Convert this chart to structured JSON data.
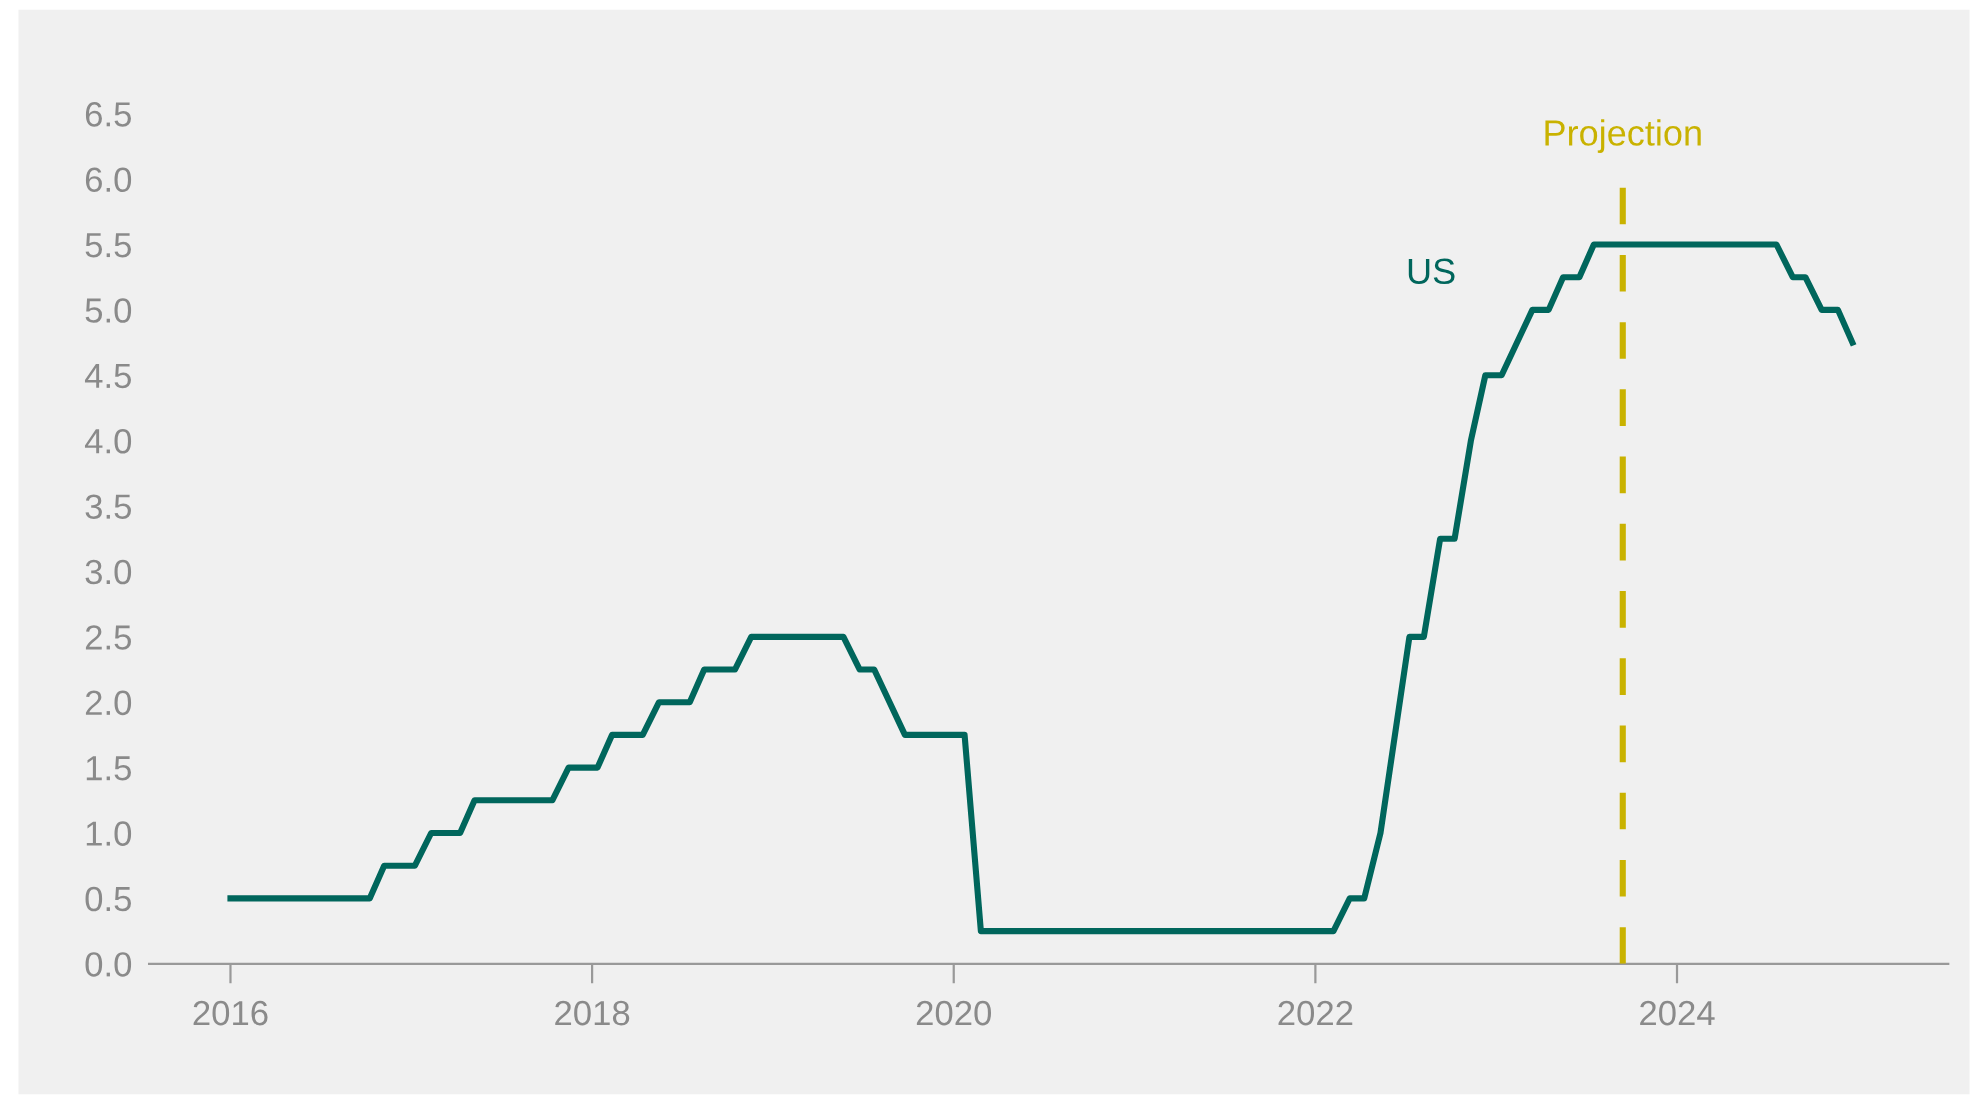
{
  "chart_data": {
    "type": "line",
    "x": [
      2016.0,
      2016.77,
      2016.85,
      2017.02,
      2017.11,
      2017.27,
      2017.35,
      2017.78,
      2017.87,
      2018.03,
      2018.11,
      2018.28,
      2018.37,
      2018.54,
      2018.62,
      2018.79,
      2018.88,
      2019.39,
      2019.48,
      2019.56,
      2019.73,
      2020.06,
      2020.15,
      2022.1,
      2022.19,
      2022.27,
      2022.36,
      2022.52,
      2022.6,
      2022.69,
      2022.77,
      2022.86,
      2022.94,
      2023.03,
      2023.2,
      2023.29,
      2023.37,
      2023.46,
      2023.54,
      2024.55,
      2024.64,
      2024.71,
      2024.8,
      2024.89,
      2024.97
    ],
    "series": [
      {
        "name": "US",
        "color": "#00665c",
        "values": [
          0.5,
          0.5,
          0.75,
          0.75,
          1.0,
          1.0,
          1.25,
          1.25,
          1.5,
          1.5,
          1.75,
          1.75,
          2.0,
          2.0,
          2.25,
          2.25,
          2.5,
          2.5,
          2.25,
          2.25,
          1.75,
          1.75,
          0.25,
          0.25,
          0.5,
          0.5,
          1.0,
          2.5,
          2.5,
          3.25,
          3.25,
          4.0,
          4.5,
          4.5,
          5.0,
          5.0,
          5.25,
          5.25,
          5.5,
          5.5,
          5.25,
          5.25,
          5.0,
          5.0,
          4.75
        ]
      }
    ],
    "xlim": [
      2015.55,
      2025.5
    ],
    "xticks": [
      2016,
      2018,
      2020,
      2022,
      2024
    ],
    "ylim": [
      0,
      6.5
    ],
    "yticks": [
      {
        "value": 0,
        "label": "0.0"
      },
      {
        "value": 0.5,
        "label": "0.5"
      },
      {
        "value": 1,
        "label": "1.0"
      },
      {
        "value": 1.5,
        "label": "1.5"
      },
      {
        "value": 2,
        "label": "2.0"
      },
      {
        "value": 2.5,
        "label": "2.5"
      },
      {
        "value": 3,
        "label": "3.0"
      },
      {
        "value": 3.5,
        "label": "3.5"
      },
      {
        "value": 4,
        "label": "4.0"
      },
      {
        "value": 4.5,
        "label": "4.5"
      },
      {
        "value": 5,
        "label": "5.0"
      },
      {
        "value": 5.5,
        "label": "5.5"
      },
      {
        "value": 6,
        "label": "6.0"
      },
      {
        "value": 6.5,
        "label": "6.5"
      }
    ],
    "ref_lines": [
      {
        "axis": "x",
        "value": 2023.7,
        "label": "Projection",
        "color": "#c9b200",
        "line_style": "dashed"
      }
    ],
    "grid": false,
    "legend": false,
    "marker": "none",
    "line_style": "solid"
  }
}
